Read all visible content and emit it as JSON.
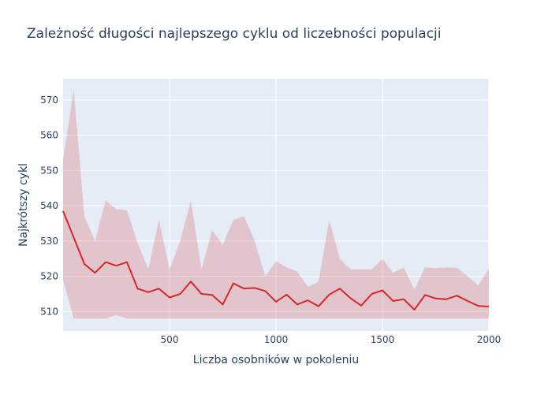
{
  "chart_data": {
    "type": "line",
    "title": "Zależność długości najlepszego cyklu od liczebności populacji",
    "xlabel": "Liczba osobników w pokoleniu",
    "ylabel": "Najkrótszy cykl",
    "xlim": [
      0,
      2000
    ],
    "ylim": [
      504.5,
      576
    ],
    "xticks": [
      500,
      1000,
      1500,
      2000
    ],
    "yticks": [
      510,
      520,
      530,
      540,
      550,
      560,
      570
    ],
    "grid": true,
    "legend": "none",
    "colors": {
      "line": "#d62728",
      "band": "#d62728",
      "plot_bg": "#e5ecf6",
      "grid": "#ffffff"
    },
    "x": [
      0,
      50,
      100,
      150,
      200,
      250,
      300,
      350,
      400,
      450,
      500,
      550,
      600,
      650,
      700,
      750,
      800,
      850,
      900,
      950,
      1000,
      1050,
      1100,
      1150,
      1200,
      1250,
      1300,
      1350,
      1400,
      1450,
      1500,
      1550,
      1600,
      1650,
      1700,
      1750,
      1800,
      1850,
      1900,
      1950,
      2000
    ],
    "series": [
      {
        "values": [
          538.5,
          531,
          523.5,
          521,
          524,
          523,
          524,
          516.5,
          515.5,
          516.5,
          514,
          515,
          518.5,
          515,
          514.7,
          512,
          518,
          516.5,
          516.7,
          515.8,
          512.8,
          514.8,
          512,
          513.2,
          511.5,
          514.8,
          516.5,
          513.8,
          511.7,
          515,
          516,
          513,
          513.5,
          510.5,
          514.7,
          513.7,
          513.5,
          514.5,
          513,
          511.6,
          511.4
        ]
      }
    ],
    "band": {
      "upper": [
        553,
        573,
        537,
        530,
        541.5,
        539,
        538.7,
        529.5,
        522,
        536,
        522,
        530,
        541.5,
        522,
        533,
        529,
        536,
        537,
        530,
        520,
        524.3,
        522.5,
        521.3,
        517,
        518.5,
        536,
        525,
        522,
        522,
        522,
        525,
        521,
        522.5,
        516.3,
        522.5,
        522.3,
        522.5,
        522.4,
        520,
        517.4,
        522.2
      ],
      "lower": [
        519,
        508,
        508,
        508,
        508,
        509,
        508,
        508,
        508,
        508,
        508,
        508,
        508,
        508,
        508,
        508,
        508,
        508,
        508,
        508,
        508,
        508,
        508,
        508,
        508,
        508,
        508,
        508,
        508,
        508,
        508,
        508,
        508,
        508,
        508,
        508,
        508,
        508,
        508,
        508,
        508
      ]
    }
  }
}
